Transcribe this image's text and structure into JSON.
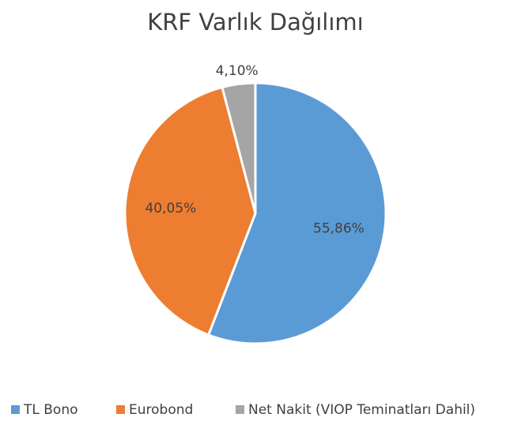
{
  "chart_data": {
    "type": "pie",
    "title": "KRF Varlık Dağılımı",
    "categories": [
      "TL Bono",
      "Eurobond",
      "Net Nakit (VIOP Teminatları Dahil)"
    ],
    "values": [
      55.86,
      40.05,
      4.1
    ],
    "value_labels": [
      "55,86%",
      "40,05%",
      "4,10%"
    ],
    "colors": [
      "#5b9bd5",
      "#ed7d31",
      "#a5a5a5"
    ],
    "legend": "bottom"
  }
}
